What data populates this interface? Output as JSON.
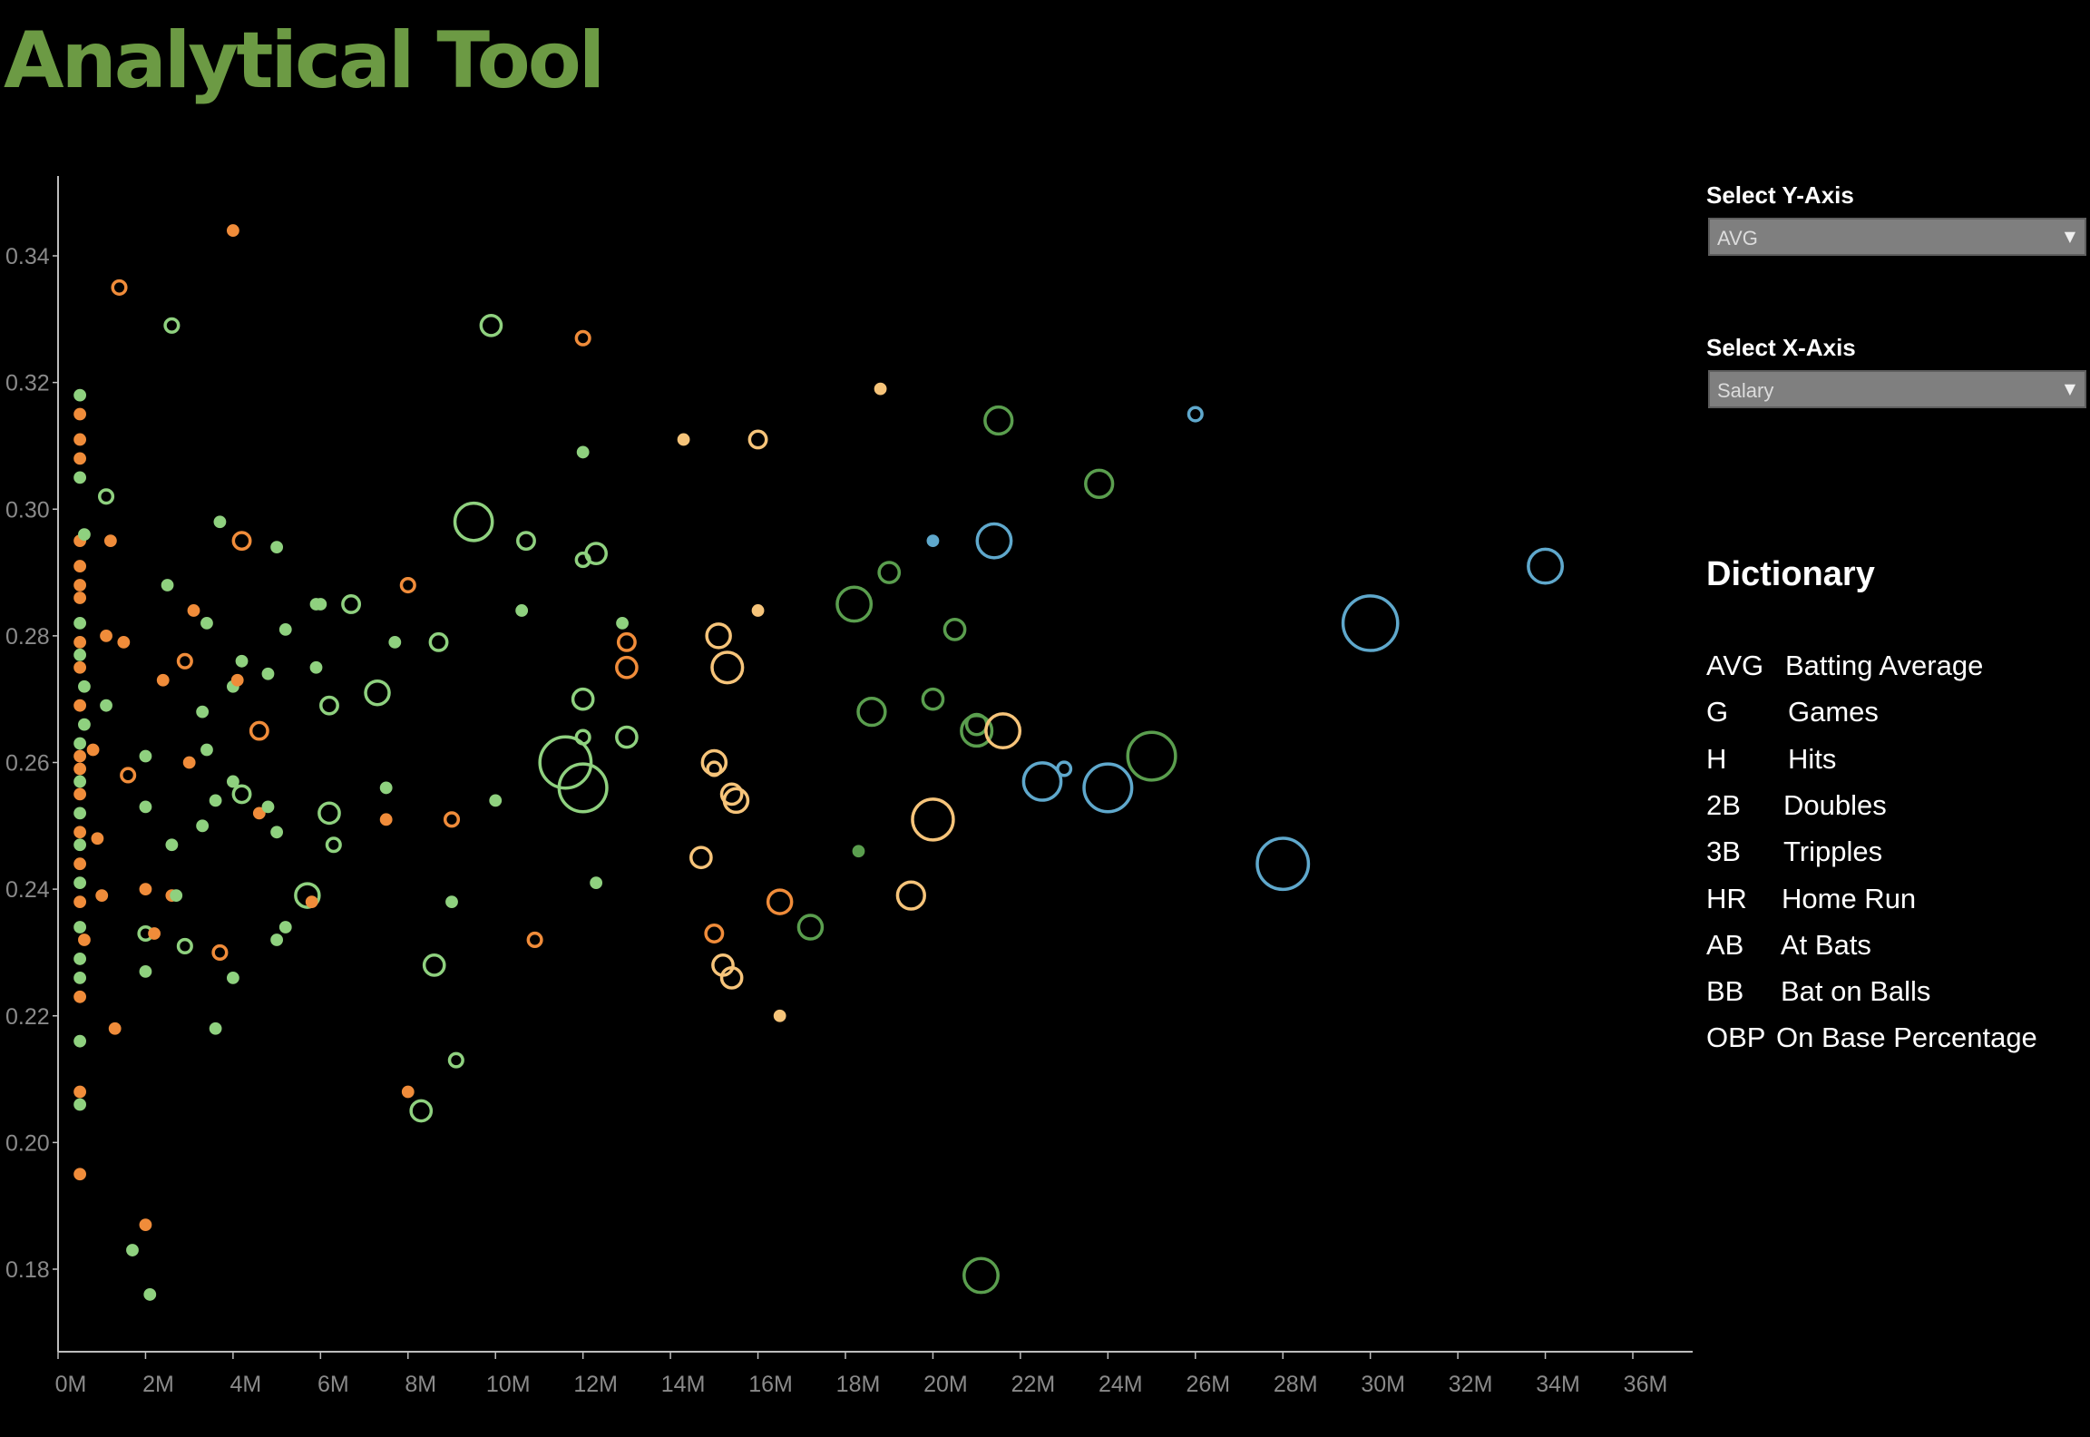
{
  "app": {
    "title": "Analytical Tool"
  },
  "controls": {
    "y_axis": {
      "label": "Select Y-Axis",
      "value": "AVG"
    },
    "x_axis": {
      "label": "Select X-Axis",
      "value": "Salary"
    }
  },
  "dictionary": {
    "title": "Dictionary",
    "entries": [
      {
        "abbr": "AVG",
        "desc": "Batting Average"
      },
      {
        "abbr": "G",
        "desc": "Games"
      },
      {
        "abbr": "H",
        "desc": "Hits"
      },
      {
        "abbr": "2B",
        "desc": "Doubles"
      },
      {
        "abbr": "3B",
        "desc": "Tripples"
      },
      {
        "abbr": "HR",
        "desc": "Home Run"
      },
      {
        "abbr": "AB",
        "desc": "At Bats"
      },
      {
        "abbr": "BB",
        "desc": "Bat on Balls"
      },
      {
        "abbr": "OBP",
        "desc": "On Base Percentage"
      }
    ]
  },
  "colors": {
    "title": "#6c9a44",
    "light_green": "#8fd17f",
    "dark_green": "#5a9e4e",
    "orange": "#f08c3a",
    "light_orange": "#f6c47a",
    "blue": "#5fa8cc"
  },
  "chart_data": {
    "type": "scatter",
    "xlabel": "",
    "ylabel": "",
    "xlim": [
      0,
      36
    ],
    "ylim": [
      0.17,
      0.355
    ],
    "x_unit": "M",
    "x_ticks": [
      "0M",
      "2M",
      "4M",
      "6M",
      "8M",
      "10M",
      "12M",
      "14M",
      "16M",
      "18M",
      "20M",
      "22M",
      "24M",
      "26M",
      "28M",
      "30M",
      "32M",
      "34M",
      "36M"
    ],
    "y_ticks": [
      "0.18",
      "0.20",
      "0.22",
      "0.24",
      "0.26",
      "0.28",
      "0.30",
      "0.32",
      "0.34"
    ],
    "points": [
      {
        "x": 0.5,
        "y": 0.318,
        "s": 1,
        "c": "light_green"
      },
      {
        "x": 0.5,
        "y": 0.315,
        "s": 1,
        "c": "orange"
      },
      {
        "x": 0.5,
        "y": 0.311,
        "s": 1,
        "c": "orange"
      },
      {
        "x": 0.5,
        "y": 0.308,
        "s": 1,
        "c": "orange"
      },
      {
        "x": 0.5,
        "y": 0.305,
        "s": 1,
        "c": "light_green"
      },
      {
        "x": 0.5,
        "y": 0.295,
        "s": 1,
        "c": "orange"
      },
      {
        "x": 0.6,
        "y": 0.296,
        "s": 1,
        "c": "light_green"
      },
      {
        "x": 0.5,
        "y": 0.291,
        "s": 1,
        "c": "orange"
      },
      {
        "x": 0.5,
        "y": 0.288,
        "s": 1,
        "c": "orange"
      },
      {
        "x": 0.5,
        "y": 0.286,
        "s": 1,
        "c": "orange"
      },
      {
        "x": 0.5,
        "y": 0.282,
        "s": 1,
        "c": "light_green"
      },
      {
        "x": 0.5,
        "y": 0.279,
        "s": 1,
        "c": "orange"
      },
      {
        "x": 0.5,
        "y": 0.277,
        "s": 1,
        "c": "light_green"
      },
      {
        "x": 0.5,
        "y": 0.275,
        "s": 1,
        "c": "orange"
      },
      {
        "x": 0.6,
        "y": 0.272,
        "s": 1,
        "c": "light_green"
      },
      {
        "x": 0.5,
        "y": 0.269,
        "s": 1,
        "c": "orange"
      },
      {
        "x": 0.6,
        "y": 0.266,
        "s": 1,
        "c": "light_green"
      },
      {
        "x": 0.5,
        "y": 0.263,
        "s": 1,
        "c": "light_green"
      },
      {
        "x": 0.5,
        "y": 0.261,
        "s": 1,
        "c": "orange"
      },
      {
        "x": 0.5,
        "y": 0.259,
        "s": 1,
        "c": "orange"
      },
      {
        "x": 0.5,
        "y": 0.257,
        "s": 1,
        "c": "light_green"
      },
      {
        "x": 0.5,
        "y": 0.255,
        "s": 1,
        "c": "orange"
      },
      {
        "x": 0.5,
        "y": 0.252,
        "s": 1,
        "c": "light_green"
      },
      {
        "x": 0.5,
        "y": 0.249,
        "s": 1,
        "c": "orange"
      },
      {
        "x": 0.5,
        "y": 0.247,
        "s": 1,
        "c": "light_green"
      },
      {
        "x": 0.5,
        "y": 0.244,
        "s": 1,
        "c": "orange"
      },
      {
        "x": 0.5,
        "y": 0.241,
        "s": 1,
        "c": "light_green"
      },
      {
        "x": 0.5,
        "y": 0.238,
        "s": 1,
        "c": "orange"
      },
      {
        "x": 0.5,
        "y": 0.234,
        "s": 1,
        "c": "light_green"
      },
      {
        "x": 0.6,
        "y": 0.232,
        "s": 1,
        "c": "orange"
      },
      {
        "x": 0.5,
        "y": 0.229,
        "s": 1,
        "c": "light_green"
      },
      {
        "x": 0.5,
        "y": 0.226,
        "s": 1,
        "c": "light_green"
      },
      {
        "x": 0.5,
        "y": 0.223,
        "s": 1,
        "c": "orange"
      },
      {
        "x": 0.5,
        "y": 0.216,
        "s": 1,
        "c": "light_green"
      },
      {
        "x": 0.5,
        "y": 0.208,
        "s": 1,
        "c": "orange"
      },
      {
        "x": 0.5,
        "y": 0.206,
        "s": 1,
        "c": "light_green"
      },
      {
        "x": 0.5,
        "y": 0.195,
        "s": 1,
        "c": "orange"
      },
      {
        "x": 0.8,
        "y": 0.262,
        "s": 1,
        "c": "orange"
      },
      {
        "x": 0.9,
        "y": 0.248,
        "s": 1,
        "c": "orange"
      },
      {
        "x": 1.0,
        "y": 0.239,
        "s": 1,
        "c": "orange"
      },
      {
        "x": 1.1,
        "y": 0.269,
        "s": 1,
        "c": "light_green"
      },
      {
        "x": 1.1,
        "y": 0.28,
        "s": 1,
        "c": "orange"
      },
      {
        "x": 1.1,
        "y": 0.302,
        "s": 2,
        "c": "light_green"
      },
      {
        "x": 1.3,
        "y": 0.218,
        "s": 1,
        "c": "orange"
      },
      {
        "x": 1.2,
        "y": 0.295,
        "s": 1,
        "c": "orange"
      },
      {
        "x": 1.4,
        "y": 0.335,
        "s": 2,
        "c": "orange"
      },
      {
        "x": 1.5,
        "y": 0.279,
        "s": 1,
        "c": "orange"
      },
      {
        "x": 1.6,
        "y": 0.258,
        "s": 2,
        "c": "orange"
      },
      {
        "x": 1.7,
        "y": 0.183,
        "s": 1,
        "c": "light_green"
      },
      {
        "x": 2.0,
        "y": 0.187,
        "s": 1,
        "c": "orange"
      },
      {
        "x": 2.1,
        "y": 0.176,
        "s": 1,
        "c": "light_green"
      },
      {
        "x": 2.0,
        "y": 0.233,
        "s": 2,
        "c": "light_green"
      },
      {
        "x": 2.0,
        "y": 0.24,
        "s": 1,
        "c": "orange"
      },
      {
        "x": 2.0,
        "y": 0.253,
        "s": 1,
        "c": "light_green"
      },
      {
        "x": 2.0,
        "y": 0.261,
        "s": 1,
        "c": "light_green"
      },
      {
        "x": 2.0,
        "y": 0.227,
        "s": 1,
        "c": "light_green"
      },
      {
        "x": 2.2,
        "y": 0.233,
        "s": 1,
        "c": "orange"
      },
      {
        "x": 2.4,
        "y": 0.273,
        "s": 1,
        "c": "orange"
      },
      {
        "x": 2.5,
        "y": 0.288,
        "s": 1,
        "c": "light_green"
      },
      {
        "x": 2.6,
        "y": 0.329,
        "s": 2,
        "c": "light_green"
      },
      {
        "x": 2.6,
        "y": 0.247,
        "s": 1,
        "c": "light_green"
      },
      {
        "x": 2.6,
        "y": 0.239,
        "s": 1,
        "c": "orange"
      },
      {
        "x": 2.7,
        "y": 0.239,
        "s": 1,
        "c": "light_green"
      },
      {
        "x": 2.9,
        "y": 0.231,
        "s": 2,
        "c": "light_green"
      },
      {
        "x": 2.9,
        "y": 0.276,
        "s": 2,
        "c": "orange"
      },
      {
        "x": 3.0,
        "y": 0.26,
        "s": 1,
        "c": "orange"
      },
      {
        "x": 3.1,
        "y": 0.284,
        "s": 1,
        "c": "orange"
      },
      {
        "x": 3.3,
        "y": 0.268,
        "s": 1,
        "c": "light_green"
      },
      {
        "x": 3.3,
        "y": 0.25,
        "s": 1,
        "c": "light_green"
      },
      {
        "x": 3.4,
        "y": 0.282,
        "s": 1,
        "c": "light_green"
      },
      {
        "x": 3.4,
        "y": 0.262,
        "s": 1,
        "c": "light_green"
      },
      {
        "x": 3.6,
        "y": 0.218,
        "s": 1,
        "c": "light_green"
      },
      {
        "x": 3.6,
        "y": 0.254,
        "s": 1,
        "c": "light_green"
      },
      {
        "x": 3.7,
        "y": 0.298,
        "s": 1,
        "c": "light_green"
      },
      {
        "x": 3.7,
        "y": 0.23,
        "s": 2,
        "c": "orange"
      },
      {
        "x": 4.0,
        "y": 0.344,
        "s": 1,
        "c": "orange"
      },
      {
        "x": 4.0,
        "y": 0.272,
        "s": 1,
        "c": "light_green"
      },
      {
        "x": 4.0,
        "y": 0.257,
        "s": 1,
        "c": "light_green"
      },
      {
        "x": 4.0,
        "y": 0.226,
        "s": 1,
        "c": "light_green"
      },
      {
        "x": 4.1,
        "y": 0.273,
        "s": 1,
        "c": "orange"
      },
      {
        "x": 4.2,
        "y": 0.276,
        "s": 1,
        "c": "light_green"
      },
      {
        "x": 4.2,
        "y": 0.255,
        "s": 3,
        "c": "light_green"
      },
      {
        "x": 4.2,
        "y": 0.295,
        "s": 3,
        "c": "orange"
      },
      {
        "x": 4.6,
        "y": 0.265,
        "s": 3,
        "c": "orange"
      },
      {
        "x": 4.6,
        "y": 0.252,
        "s": 1,
        "c": "orange"
      },
      {
        "x": 4.8,
        "y": 0.274,
        "s": 1,
        "c": "light_green"
      },
      {
        "x": 4.8,
        "y": 0.253,
        "s": 1,
        "c": "light_green"
      },
      {
        "x": 5.0,
        "y": 0.294,
        "s": 1,
        "c": "light_green"
      },
      {
        "x": 5.0,
        "y": 0.249,
        "s": 1,
        "c": "light_green"
      },
      {
        "x": 5.0,
        "y": 0.232,
        "s": 1,
        "c": "light_green"
      },
      {
        "x": 5.2,
        "y": 0.281,
        "s": 1,
        "c": "light_green"
      },
      {
        "x": 5.2,
        "y": 0.234,
        "s": 1,
        "c": "light_green"
      },
      {
        "x": 5.7,
        "y": 0.239,
        "s": 5,
        "c": "light_green"
      },
      {
        "x": 5.8,
        "y": 0.238,
        "s": 1,
        "c": "orange"
      },
      {
        "x": 5.9,
        "y": 0.275,
        "s": 1,
        "c": "light_green"
      },
      {
        "x": 5.9,
        "y": 0.285,
        "s": 1,
        "c": "light_green"
      },
      {
        "x": 6.0,
        "y": 0.285,
        "s": 1,
        "c": "light_green"
      },
      {
        "x": 6.2,
        "y": 0.269,
        "s": 3,
        "c": "light_green"
      },
      {
        "x": 6.2,
        "y": 0.252,
        "s": 4,
        "c": "light_green"
      },
      {
        "x": 6.3,
        "y": 0.247,
        "s": 2,
        "c": "light_green"
      },
      {
        "x": 6.7,
        "y": 0.285,
        "s": 3,
        "c": "light_green"
      },
      {
        "x": 7.3,
        "y": 0.271,
        "s": 5,
        "c": "light_green"
      },
      {
        "x": 7.5,
        "y": 0.256,
        "s": 1,
        "c": "light_green"
      },
      {
        "x": 7.5,
        "y": 0.251,
        "s": 1,
        "c": "orange"
      },
      {
        "x": 7.7,
        "y": 0.279,
        "s": 1,
        "c": "light_green"
      },
      {
        "x": 8.0,
        "y": 0.288,
        "s": 2,
        "c": "orange"
      },
      {
        "x": 8.0,
        "y": 0.208,
        "s": 1,
        "c": "orange"
      },
      {
        "x": 8.3,
        "y": 0.205,
        "s": 4,
        "c": "light_green"
      },
      {
        "x": 8.6,
        "y": 0.228,
        "s": 4,
        "c": "light_green"
      },
      {
        "x": 8.7,
        "y": 0.279,
        "s": 3,
        "c": "light_green"
      },
      {
        "x": 9.0,
        "y": 0.238,
        "s": 1,
        "c": "light_green"
      },
      {
        "x": 9.0,
        "y": 0.251,
        "s": 2,
        "c": "orange"
      },
      {
        "x": 9.1,
        "y": 0.213,
        "s": 2,
        "c": "light_green"
      },
      {
        "x": 9.5,
        "y": 0.298,
        "s": 9,
        "c": "light_green"
      },
      {
        "x": 9.9,
        "y": 0.329,
        "s": 4,
        "c": "light_green"
      },
      {
        "x": 10.0,
        "y": 0.254,
        "s": 1,
        "c": "light_green"
      },
      {
        "x": 10.6,
        "y": 0.284,
        "s": 1,
        "c": "light_green"
      },
      {
        "x": 10.7,
        "y": 0.295,
        "s": 3,
        "c": "light_green"
      },
      {
        "x": 10.9,
        "y": 0.232,
        "s": 2,
        "c": "orange"
      },
      {
        "x": 11.6,
        "y": 0.26,
        "s": 13,
        "c": "light_green"
      },
      {
        "x": 12.0,
        "y": 0.256,
        "s": 12,
        "c": "light_green"
      },
      {
        "x": 12.0,
        "y": 0.27,
        "s": 4,
        "c": "light_green"
      },
      {
        "x": 12.0,
        "y": 0.264,
        "s": 2,
        "c": "light_green"
      },
      {
        "x": 12.0,
        "y": 0.292,
        "s": 2,
        "c": "light_green"
      },
      {
        "x": 12.0,
        "y": 0.309,
        "s": 1,
        "c": "light_green"
      },
      {
        "x": 12.0,
        "y": 0.327,
        "s": 2,
        "c": "orange"
      },
      {
        "x": 12.3,
        "y": 0.293,
        "s": 4,
        "c": "light_green"
      },
      {
        "x": 12.3,
        "y": 0.241,
        "s": 1,
        "c": "light_green"
      },
      {
        "x": 12.9,
        "y": 0.282,
        "s": 1,
        "c": "light_green"
      },
      {
        "x": 13.0,
        "y": 0.279,
        "s": 3,
        "c": "orange"
      },
      {
        "x": 13.0,
        "y": 0.275,
        "s": 4,
        "c": "orange"
      },
      {
        "x": 13.0,
        "y": 0.264,
        "s": 4,
        "c": "light_green"
      },
      {
        "x": 14.3,
        "y": 0.311,
        "s": 1,
        "c": "light_orange"
      },
      {
        "x": 14.7,
        "y": 0.245,
        "s": 4,
        "c": "light_orange"
      },
      {
        "x": 15.0,
        "y": 0.26,
        "s": 5,
        "c": "light_orange"
      },
      {
        "x": 15.0,
        "y": 0.259,
        "s": 2,
        "c": "light_orange"
      },
      {
        "x": 15.0,
        "y": 0.233,
        "s": 3,
        "c": "orange"
      },
      {
        "x": 15.1,
        "y": 0.28,
        "s": 5,
        "c": "light_orange"
      },
      {
        "x": 15.2,
        "y": 0.228,
        "s": 4,
        "c": "light_orange"
      },
      {
        "x": 15.3,
        "y": 0.275,
        "s": 7,
        "c": "light_orange"
      },
      {
        "x": 15.4,
        "y": 0.255,
        "s": 4,
        "c": "light_orange"
      },
      {
        "x": 15.4,
        "y": 0.226,
        "s": 4,
        "c": "light_orange"
      },
      {
        "x": 15.5,
        "y": 0.254,
        "s": 5,
        "c": "light_orange"
      },
      {
        "x": 16.0,
        "y": 0.311,
        "s": 3,
        "c": "light_orange"
      },
      {
        "x": 16.0,
        "y": 0.284,
        "s": 1,
        "c": "light_orange"
      },
      {
        "x": 16.5,
        "y": 0.238,
        "s": 5,
        "c": "orange"
      },
      {
        "x": 16.5,
        "y": 0.22,
        "s": 1,
        "c": "light_orange"
      },
      {
        "x": 17.2,
        "y": 0.234,
        "s": 5,
        "c": "dark_green"
      },
      {
        "x": 18.2,
        "y": 0.285,
        "s": 8,
        "c": "dark_green"
      },
      {
        "x": 18.3,
        "y": 0.246,
        "s": 1,
        "c": "dark_green"
      },
      {
        "x": 18.6,
        "y": 0.268,
        "s": 6,
        "c": "dark_green"
      },
      {
        "x": 18.8,
        "y": 0.319,
        "s": 1,
        "c": "light_orange"
      },
      {
        "x": 19.0,
        "y": 0.29,
        "s": 4,
        "c": "dark_green"
      },
      {
        "x": 19.5,
        "y": 0.239,
        "s": 6,
        "c": "light_orange"
      },
      {
        "x": 20.0,
        "y": 0.295,
        "s": 1,
        "c": "blue"
      },
      {
        "x": 20.0,
        "y": 0.27,
        "s": 4,
        "c": "dark_green"
      },
      {
        "x": 20.0,
        "y": 0.251,
        "s": 10,
        "c": "light_orange"
      },
      {
        "x": 20.5,
        "y": 0.281,
        "s": 4,
        "c": "dark_green"
      },
      {
        "x": 21.0,
        "y": 0.265,
        "s": 7,
        "c": "dark_green"
      },
      {
        "x": 21.0,
        "y": 0.266,
        "s": 4,
        "c": "dark_green"
      },
      {
        "x": 21.1,
        "y": 0.179,
        "s": 8,
        "c": "dark_green"
      },
      {
        "x": 21.4,
        "y": 0.295,
        "s": 8,
        "c": "blue"
      },
      {
        "x": 21.5,
        "y": 0.314,
        "s": 6,
        "c": "dark_green"
      },
      {
        "x": 21.6,
        "y": 0.265,
        "s": 8,
        "c": "light_orange"
      },
      {
        "x": 22.5,
        "y": 0.257,
        "s": 9,
        "c": "blue"
      },
      {
        "x": 23.0,
        "y": 0.259,
        "s": 2,
        "c": "blue"
      },
      {
        "x": 23.8,
        "y": 0.304,
        "s": 6,
        "c": "dark_green"
      },
      {
        "x": 24.0,
        "y": 0.256,
        "s": 12,
        "c": "blue"
      },
      {
        "x": 25.0,
        "y": 0.261,
        "s": 12,
        "c": "dark_green"
      },
      {
        "x": 26.0,
        "y": 0.315,
        "s": 2,
        "c": "blue"
      },
      {
        "x": 28.0,
        "y": 0.244,
        "s": 13,
        "c": "blue"
      },
      {
        "x": 30.0,
        "y": 0.282,
        "s": 14,
        "c": "blue"
      },
      {
        "x": 34.0,
        "y": 0.291,
        "s": 8,
        "c": "blue"
      }
    ]
  }
}
